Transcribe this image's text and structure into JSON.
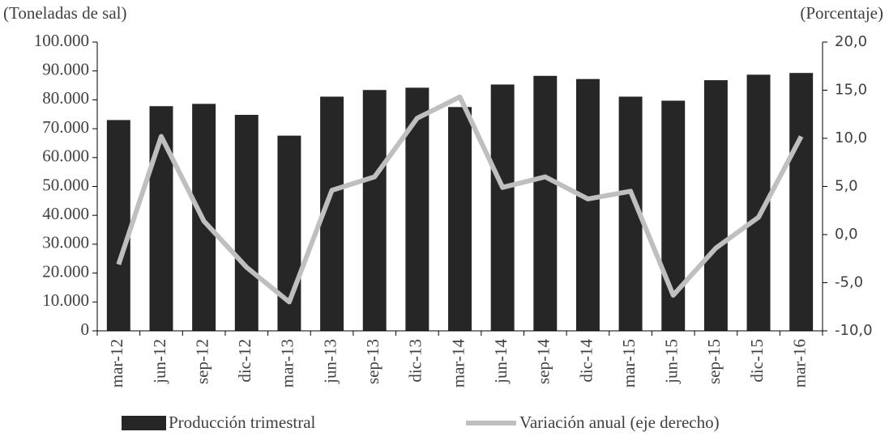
{
  "chart_data": {
    "type": "bar",
    "y_label": "(Toneladas de sal)",
    "y2_label": "(Porcentaje)",
    "categories": [
      "mar-12",
      "jun-12",
      "sep-12",
      "dic-12",
      "mar-13",
      "jun-13",
      "sep-13",
      "dic-13",
      "mar-14",
      "jun-14",
      "sep-14",
      "dic-14",
      "mar-15",
      "jun-15",
      "sep-15",
      "dic-15",
      "mar-16"
    ],
    "series": [
      {
        "name": "Producción trimestral",
        "type": "bar",
        "color": "#262626",
        "values": [
          73000,
          77800,
          78600,
          74800,
          67600,
          81100,
          83400,
          84200,
          77500,
          85300,
          88300,
          87200,
          81100,
          79700,
          86800,
          88700,
          89300
        ]
      },
      {
        "name": "Variación anual (eje derecho)",
        "type": "line",
        "axis": "y2",
        "color": "#bfbfbf",
        "values": [
          -3.1,
          10.2,
          1.4,
          -3.4,
          -7.0,
          4.6,
          6.0,
          12.1,
          14.3,
          4.9,
          6.0,
          3.7,
          4.5,
          -6.3,
          -1.4,
          1.8,
          10.2
        ]
      }
    ],
    "ylim": [
      0,
      100000
    ],
    "yticks": [
      0,
      {
        "value": 10000,
        "label": "10.000"
      },
      {
        "value": 20000,
        "label": "20.000"
      },
      {
        "value": 30000,
        "label": "30.000"
      },
      {
        "value": 40000,
        "label": "40.000"
      },
      {
        "value": 50000,
        "label": "50.000"
      },
      {
        "value": 60000,
        "label": "60.000"
      },
      {
        "value": 70000,
        "label": "70.000"
      },
      {
        "value": 80000,
        "label": "80.000"
      },
      {
        "value": 90000,
        "label": "90.000"
      },
      {
        "value": 100000,
        "label": "100.000"
      }
    ],
    "y2lim": [
      -10,
      20
    ],
    "y2ticks": [
      {
        "value": -10,
        "label": "-10,0"
      },
      {
        "value": -5,
        "label": "-5,0"
      },
      {
        "value": 0,
        "label": "0,0"
      },
      {
        "value": 5,
        "label": "5,0"
      },
      {
        "value": 10,
        "label": "10,0"
      },
      {
        "value": 15,
        "label": "15,0"
      },
      {
        "value": 20,
        "label": "20,0"
      }
    ],
    "legend": "bottom"
  }
}
